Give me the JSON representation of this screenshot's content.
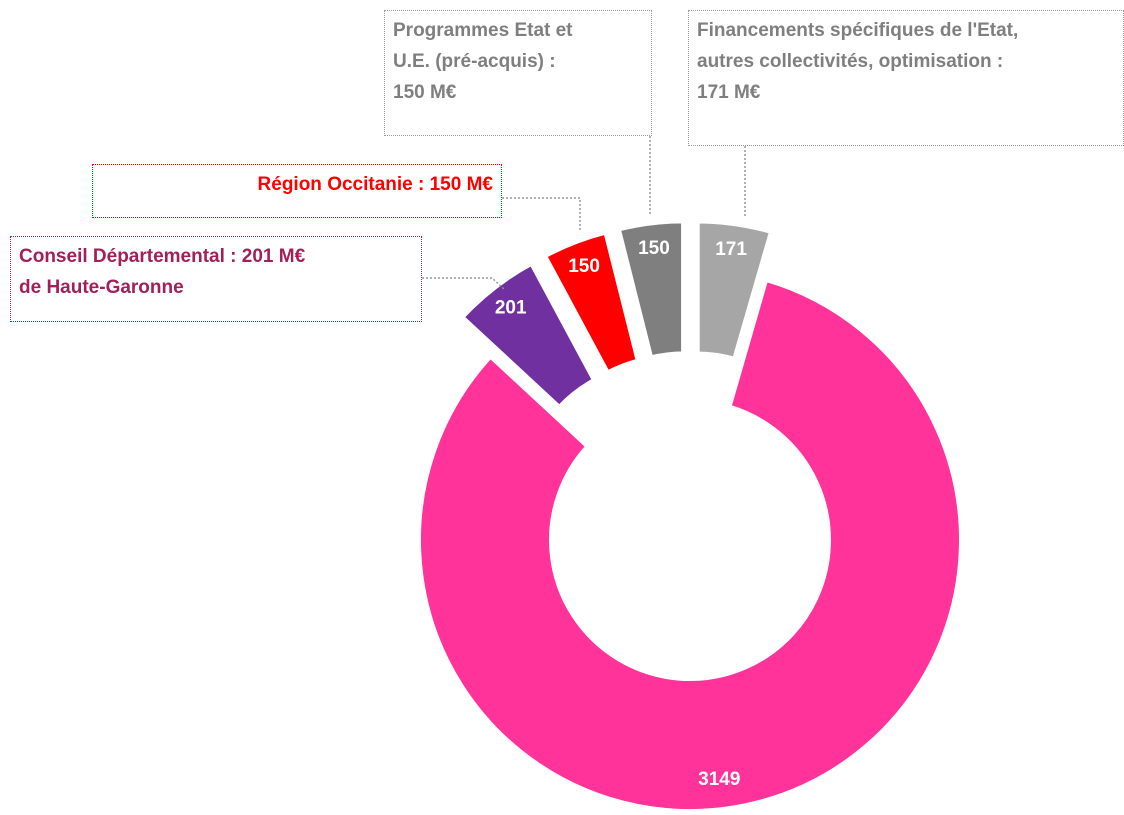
{
  "chart_data": {
    "type": "donut",
    "labels": [
      [
        "Financements spécifiques de l'Etat,",
        "autres collectivités, optimisation :",
        "171 M€"
      ],
      null,
      [
        "Conseil Départemental : 201 M€",
        "de Haute-Garonne"
      ],
      [
        "Région Occitanie : 150 M€"
      ],
      [
        "Programmes Etat et",
        "U.E. (pré-acquis) :",
        "150 M€"
      ]
    ],
    "values": [
      171,
      3149,
      201,
      150,
      150
    ],
    "colors": [
      "#a6a6a6",
      "#ff3399",
      "#7030a0",
      "#ff0000",
      "#7f7f7f"
    ],
    "label_colors": [
      "#7f7f7f",
      null,
      "#a31f5a",
      "#ff0000",
      "#7f7f7f"
    ]
  }
}
